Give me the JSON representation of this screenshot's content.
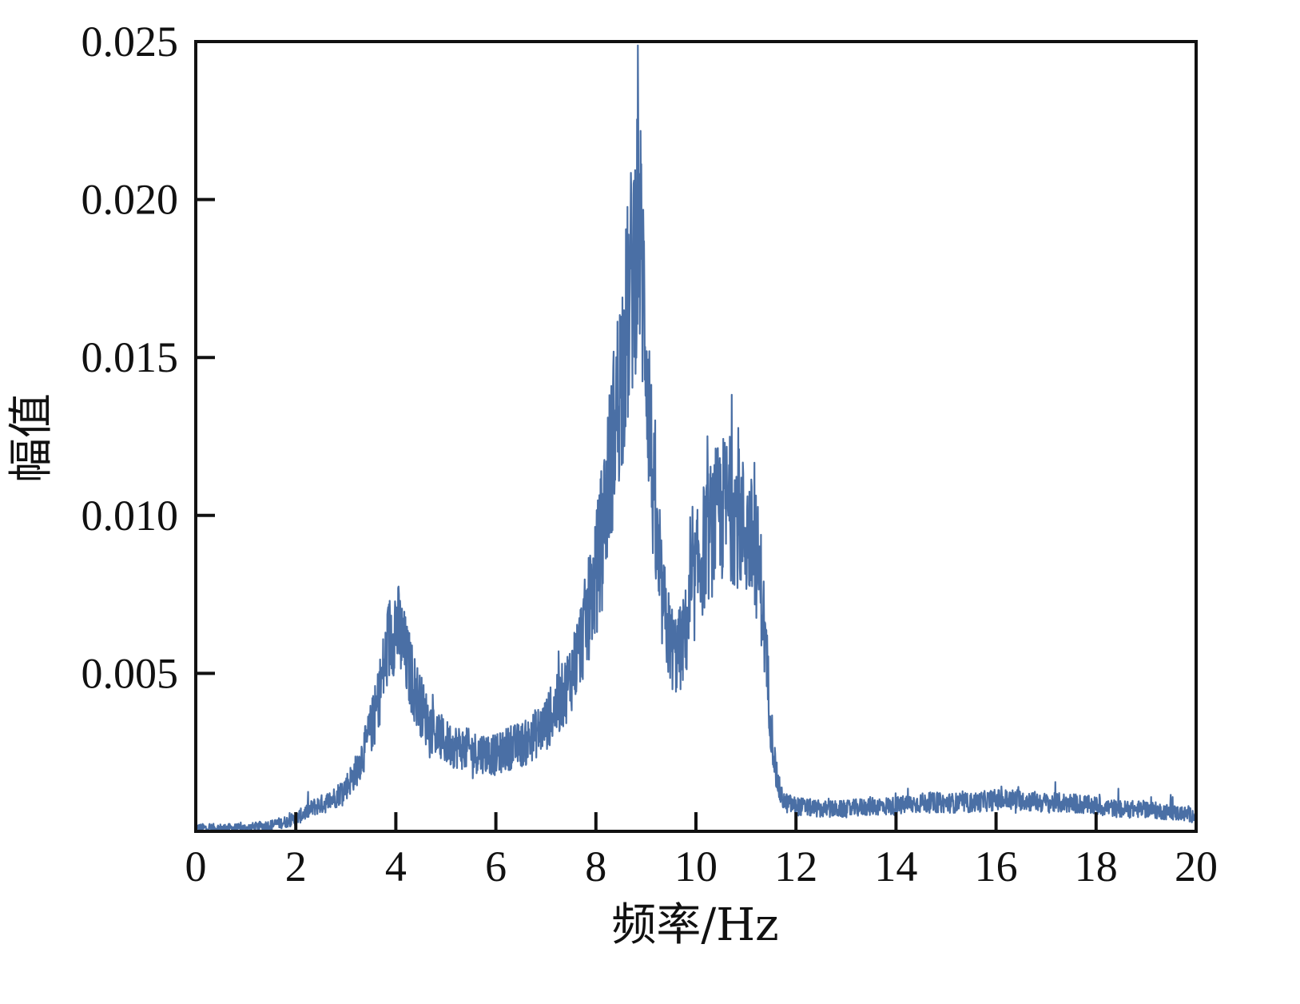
{
  "chart_data": {
    "type": "line",
    "title": "",
    "xlabel": "频率/Hz",
    "ylabel": "幅值",
    "xlim": [
      0,
      20
    ],
    "ylim": [
      0,
      0.025
    ],
    "x_ticks": [
      0,
      2,
      4,
      6,
      8,
      10,
      12,
      14,
      16,
      18,
      20
    ],
    "x_tick_labels": [
      "0",
      "2",
      "4",
      "6",
      "8",
      "10",
      "12",
      "14",
      "16",
      "18",
      "20"
    ],
    "y_ticks": [
      0.005,
      0.01,
      0.015,
      0.02,
      0.025
    ],
    "y_tick_labels": [
      "0.005",
      "0.010",
      "0.015",
      "0.020",
      "0.025"
    ],
    "grid": false,
    "legend": "none",
    "series": [
      {
        "color": "#4a6fa5",
        "x": [
          0.0,
          0.5,
          1.0,
          1.5,
          1.8,
          2.0,
          2.2,
          2.4,
          2.6,
          2.8,
          3.0,
          3.2,
          3.4,
          3.6,
          3.8,
          3.9,
          4.0,
          4.1,
          4.2,
          4.4,
          4.6,
          4.8,
          5.0,
          5.2,
          5.4,
          5.6,
          5.8,
          6.0,
          6.2,
          6.4,
          6.6,
          6.8,
          7.0,
          7.2,
          7.4,
          7.6,
          7.8,
          8.0,
          8.2,
          8.4,
          8.5,
          8.6,
          8.7,
          8.8,
          8.85,
          8.9,
          9.0,
          9.1,
          9.2,
          9.3,
          9.4,
          9.5,
          9.6,
          9.7,
          9.8,
          9.9,
          10.0,
          10.2,
          10.4,
          10.6,
          10.8,
          11.0,
          11.2,
          11.3,
          11.4,
          11.5,
          11.6,
          11.7,
          11.8,
          12.0,
          12.5,
          13.0,
          13.5,
          14.0,
          14.5,
          15.0,
          15.5,
          16.0,
          16.5,
          17.0,
          17.5,
          18.0,
          18.5,
          19.0,
          19.5,
          20.0
        ],
        "y": [
          0.0001,
          0.0001,
          0.0001,
          0.0002,
          0.0003,
          0.0004,
          0.0006,
          0.0008,
          0.0009,
          0.0011,
          0.0014,
          0.0019,
          0.0027,
          0.0038,
          0.0055,
          0.0063,
          0.0066,
          0.0061,
          0.0055,
          0.0044,
          0.0036,
          0.0031,
          0.0028,
          0.0027,
          0.0026,
          0.0025,
          0.0025,
          0.0024,
          0.0026,
          0.0027,
          0.0028,
          0.0031,
          0.0034,
          0.0039,
          0.0045,
          0.0054,
          0.0066,
          0.0081,
          0.0105,
          0.0132,
          0.0145,
          0.0158,
          0.0172,
          0.0188,
          0.0195,
          0.0183,
          0.0158,
          0.0121,
          0.0092,
          0.0076,
          0.0066,
          0.0059,
          0.0056,
          0.0058,
          0.0063,
          0.0072,
          0.0081,
          0.0092,
          0.0099,
          0.0103,
          0.0101,
          0.0095,
          0.0088,
          0.0078,
          0.0056,
          0.0034,
          0.0018,
          0.0011,
          0.0009,
          0.0008,
          0.0007,
          0.0007,
          0.0008,
          0.0008,
          0.0009,
          0.0009,
          0.0009,
          0.001,
          0.001,
          0.0009,
          0.0009,
          0.0008,
          0.0007,
          0.0007,
          0.0006,
          0.0005
        ]
      }
    ]
  }
}
